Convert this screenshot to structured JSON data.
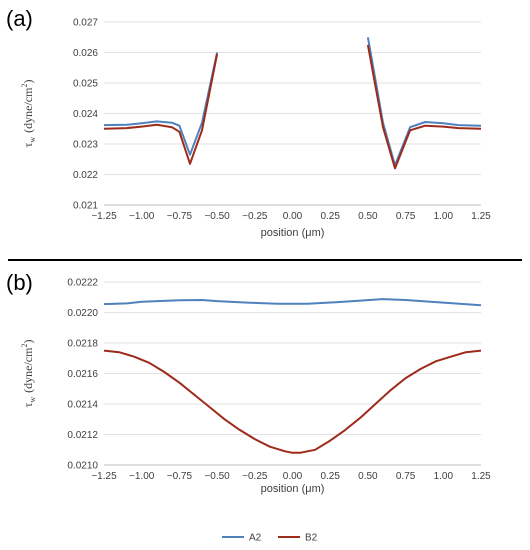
{
  "chart_data": [
    {
      "type": "line",
      "panel_label": "(a)",
      "xlabel": "position (μm)",
      "ylabel_main": "τ",
      "ylabel_sub": "w",
      "ylabel_unit_open": "(dyne/cm",
      "ylabel_unit_sup": "2",
      "ylabel_unit_close": ")",
      "xlim": [
        -1.25,
        1.25
      ],
      "ylim": [
        0.021,
        0.027
      ],
      "xticks": [
        -1.25,
        -1.0,
        -0.75,
        -0.5,
        -0.25,
        0.0,
        0.25,
        0.5,
        0.75,
        1.0,
        1.25
      ],
      "xtick_labels": [
        "−1.25",
        "−1.00",
        "−0.75",
        "−0.50",
        "−0.25",
        "0.00",
        "0.25",
        "0.50",
        "0.75",
        "1.00",
        "1.25"
      ],
      "yticks": [
        0.021,
        0.022,
        0.023,
        0.024,
        0.025,
        0.026,
        0.027
      ],
      "ytick_labels": [
        "0.021",
        "0.022",
        "0.023",
        "0.024",
        "0.025",
        "0.026",
        "0.027"
      ],
      "grid": "horizontal",
      "series": [
        {
          "name": "A2",
          "color": "#4f81bd",
          "segments": [
            [
              [
                -1.25,
                0.02362
              ],
              [
                -1.1,
                0.02363
              ],
              [
                -1.0,
                0.02368
              ],
              [
                -0.9,
                0.02374
              ],
              [
                -0.8,
                0.0237
              ],
              [
                -0.75,
                0.0236
              ],
              [
                -0.68,
                0.02265
              ],
              [
                -0.6,
                0.0237
              ],
              [
                -0.5,
                0.026
              ]
            ],
            [
              [
                0.5,
                0.0265
              ],
              [
                0.6,
                0.0237
              ],
              [
                0.68,
                0.0223
              ],
              [
                0.78,
                0.02355
              ],
              [
                0.88,
                0.02372
              ],
              [
                1.0,
                0.02368
              ],
              [
                1.1,
                0.02362
              ],
              [
                1.25,
                0.0236
              ]
            ]
          ]
        },
        {
          "name": "B2",
          "color": "#9e2a1a",
          "segments": [
            [
              [
                -1.25,
                0.0235
              ],
              [
                -1.1,
                0.02352
              ],
              [
                -1.0,
                0.02357
              ],
              [
                -0.9,
                0.02363
              ],
              [
                -0.8,
                0.02355
              ],
              [
                -0.75,
                0.0234
              ],
              [
                -0.68,
                0.02235
              ],
              [
                -0.6,
                0.02345
              ],
              [
                -0.5,
                0.02595
              ]
            ],
            [
              [
                0.5,
                0.02625
              ],
              [
                0.6,
                0.02355
              ],
              [
                0.68,
                0.0222
              ],
              [
                0.78,
                0.02345
              ],
              [
                0.88,
                0.0236
              ],
              [
                1.0,
                0.02357
              ],
              [
                1.1,
                0.02352
              ],
              [
                1.25,
                0.0235
              ]
            ]
          ]
        }
      ]
    },
    {
      "type": "line",
      "panel_label": "(b)",
      "xlabel": "position (μm)",
      "ylabel_main": "τ",
      "ylabel_sub": "w",
      "ylabel_unit_open": "(dyne/cm",
      "ylabel_unit_sup": "2",
      "ylabel_unit_close": ")",
      "xlim": [
        -1.25,
        1.25
      ],
      "ylim": [
        0.021,
        0.0222
      ],
      "xticks": [
        -1.25,
        -1.0,
        -0.75,
        -0.5,
        -0.25,
        0.0,
        0.25,
        0.5,
        0.75,
        1.0,
        1.25
      ],
      "xtick_labels": [
        "−1.25",
        "−1.00",
        "−0.75",
        "−0.50",
        "−0.25",
        "0.00",
        "0.25",
        "0.50",
        "0.75",
        "1.00",
        "1.25"
      ],
      "yticks": [
        0.021,
        0.0212,
        0.0214,
        0.0216,
        0.0218,
        0.022,
        0.0222
      ],
      "ytick_labels": [
        "0.0210",
        "0.0212",
        "0.0214",
        "0.0216",
        "0.0218",
        "0.0220",
        "0.0222"
      ],
      "grid": "horizontal",
      "series": [
        {
          "name": "A2",
          "color": "#4f81bd",
          "segments": [
            [
              [
                -1.25,
                0.022055
              ],
              [
                -1.1,
                0.02206
              ],
              [
                -1.0,
                0.02207
              ],
              [
                -0.75,
                0.02208
              ],
              [
                -0.6,
                0.022082
              ],
              [
                -0.5,
                0.022075
              ],
              [
                -0.3,
                0.022065
              ],
              [
                -0.1,
                0.022058
              ],
              [
                0.1,
                0.022057
              ],
              [
                0.3,
                0.022068
              ],
              [
                0.45,
                0.022078
              ],
              [
                0.6,
                0.022088
              ],
              [
                0.75,
                0.022082
              ],
              [
                1.0,
                0.022065
              ],
              [
                1.25,
                0.022048
              ]
            ]
          ]
        },
        {
          "name": "B2",
          "color": "#9e2a1a",
          "segments": [
            [
              [
                -1.25,
                0.02175
              ],
              [
                -1.15,
                0.02174
              ],
              [
                -1.05,
                0.02171
              ],
              [
                -0.95,
                0.02167
              ],
              [
                -0.85,
                0.02161
              ],
              [
                -0.75,
                0.02154
              ],
              [
                -0.65,
                0.02146
              ],
              [
                -0.55,
                0.02138
              ],
              [
                -0.45,
                0.0213
              ],
              [
                -0.35,
                0.02123
              ],
              [
                -0.25,
                0.02117
              ],
              [
                -0.15,
                0.02112
              ],
              [
                -0.05,
                0.02109
              ],
              [
                0.0,
                0.02108
              ],
              [
                0.05,
                0.02108
              ],
              [
                0.15,
                0.0211
              ],
              [
                0.25,
                0.02116
              ],
              [
                0.35,
                0.02123
              ],
              [
                0.45,
                0.02131
              ],
              [
                0.55,
                0.0214
              ],
              [
                0.65,
                0.02149
              ],
              [
                0.75,
                0.02157
              ],
              [
                0.85,
                0.02163
              ],
              [
                0.95,
                0.02168
              ],
              [
                1.05,
                0.02171
              ],
              [
                1.15,
                0.02174
              ],
              [
                1.25,
                0.02175
              ]
            ]
          ]
        }
      ]
    }
  ],
  "legend": {
    "position": "bottom-center",
    "items": [
      {
        "name": "A2",
        "color": "#4f81bd"
      },
      {
        "name": "B2",
        "color": "#9e2a1a"
      }
    ]
  }
}
